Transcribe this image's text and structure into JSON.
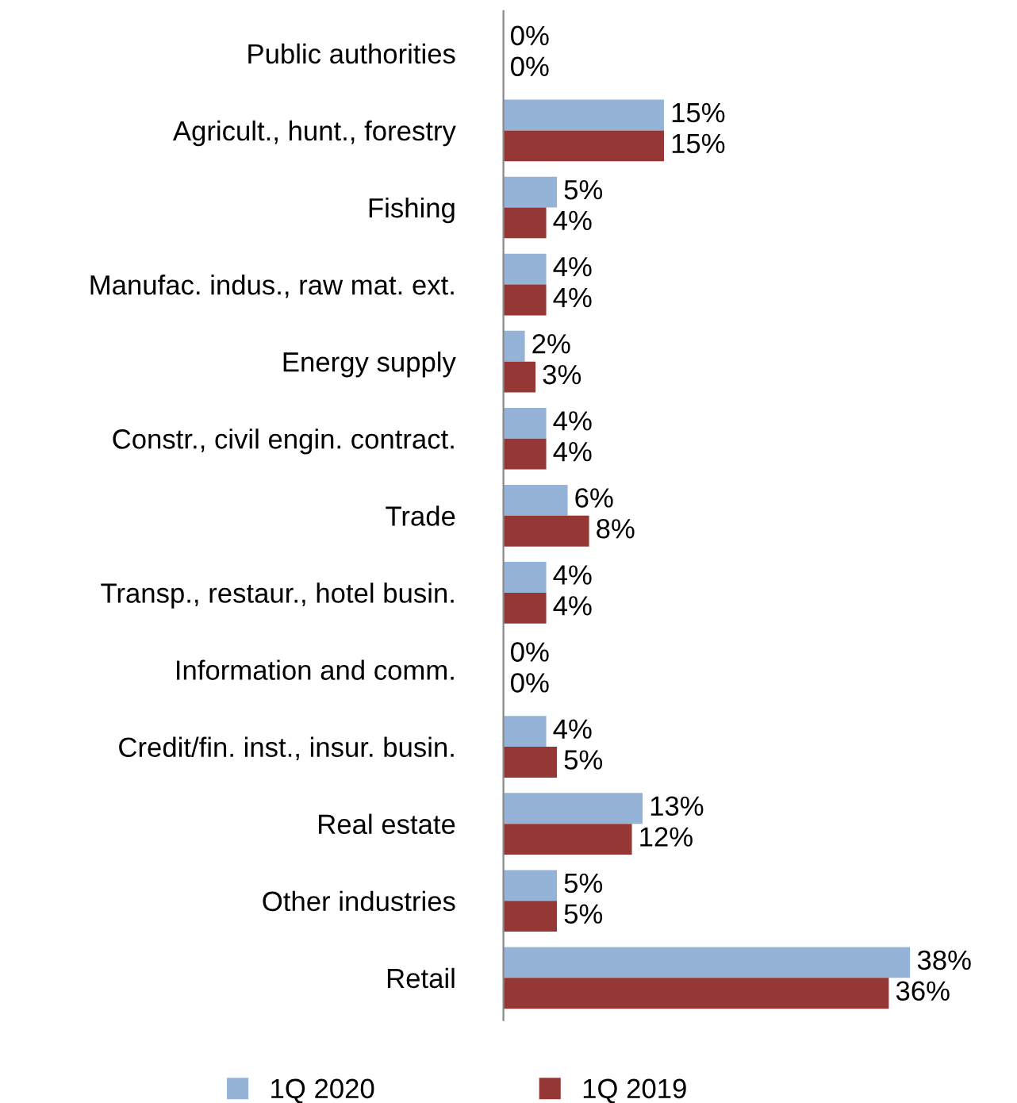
{
  "chart_data": {
    "type": "bar",
    "orientation": "horizontal",
    "categories": [
      "Public authorities",
      "Agricult., hunt., forestry",
      "Fishing",
      "Manufac. indus., raw mat. ext.",
      "Energy supply",
      "Constr., civil engin. contract.",
      "Trade",
      "Transp., restaur., hotel busin.",
      "Information and comm.",
      "Credit/fin. inst., insur. busin.",
      "Real estate",
      "Other industries",
      "Retail"
    ],
    "series": [
      {
        "name": "1Q 2020",
        "color": "#95b3d7",
        "values": [
          0,
          15,
          5,
          4,
          2,
          4,
          6,
          4,
          0,
          4,
          13,
          5,
          38
        ],
        "value_labels": [
          "0%",
          "15%",
          "5%",
          "4%",
          "2%",
          "4%",
          "6%",
          "4%",
          "0%",
          "4%",
          "13%",
          "5%",
          "38%"
        ]
      },
      {
        "name": "1Q 2019",
        "color": "#953735",
        "values": [
          0,
          15,
          4,
          4,
          3,
          4,
          8,
          4,
          0,
          5,
          12,
          5,
          36
        ],
        "value_labels": [
          "0%",
          "15%",
          "4%",
          "4%",
          "3%",
          "4%",
          "8%",
          "4%",
          "0%",
          "5%",
          "12%",
          "5%",
          "36%"
        ]
      }
    ],
    "xlim": [
      0,
      38
    ],
    "tick_labels": "y",
    "grid": false,
    "legend": "bottom"
  }
}
